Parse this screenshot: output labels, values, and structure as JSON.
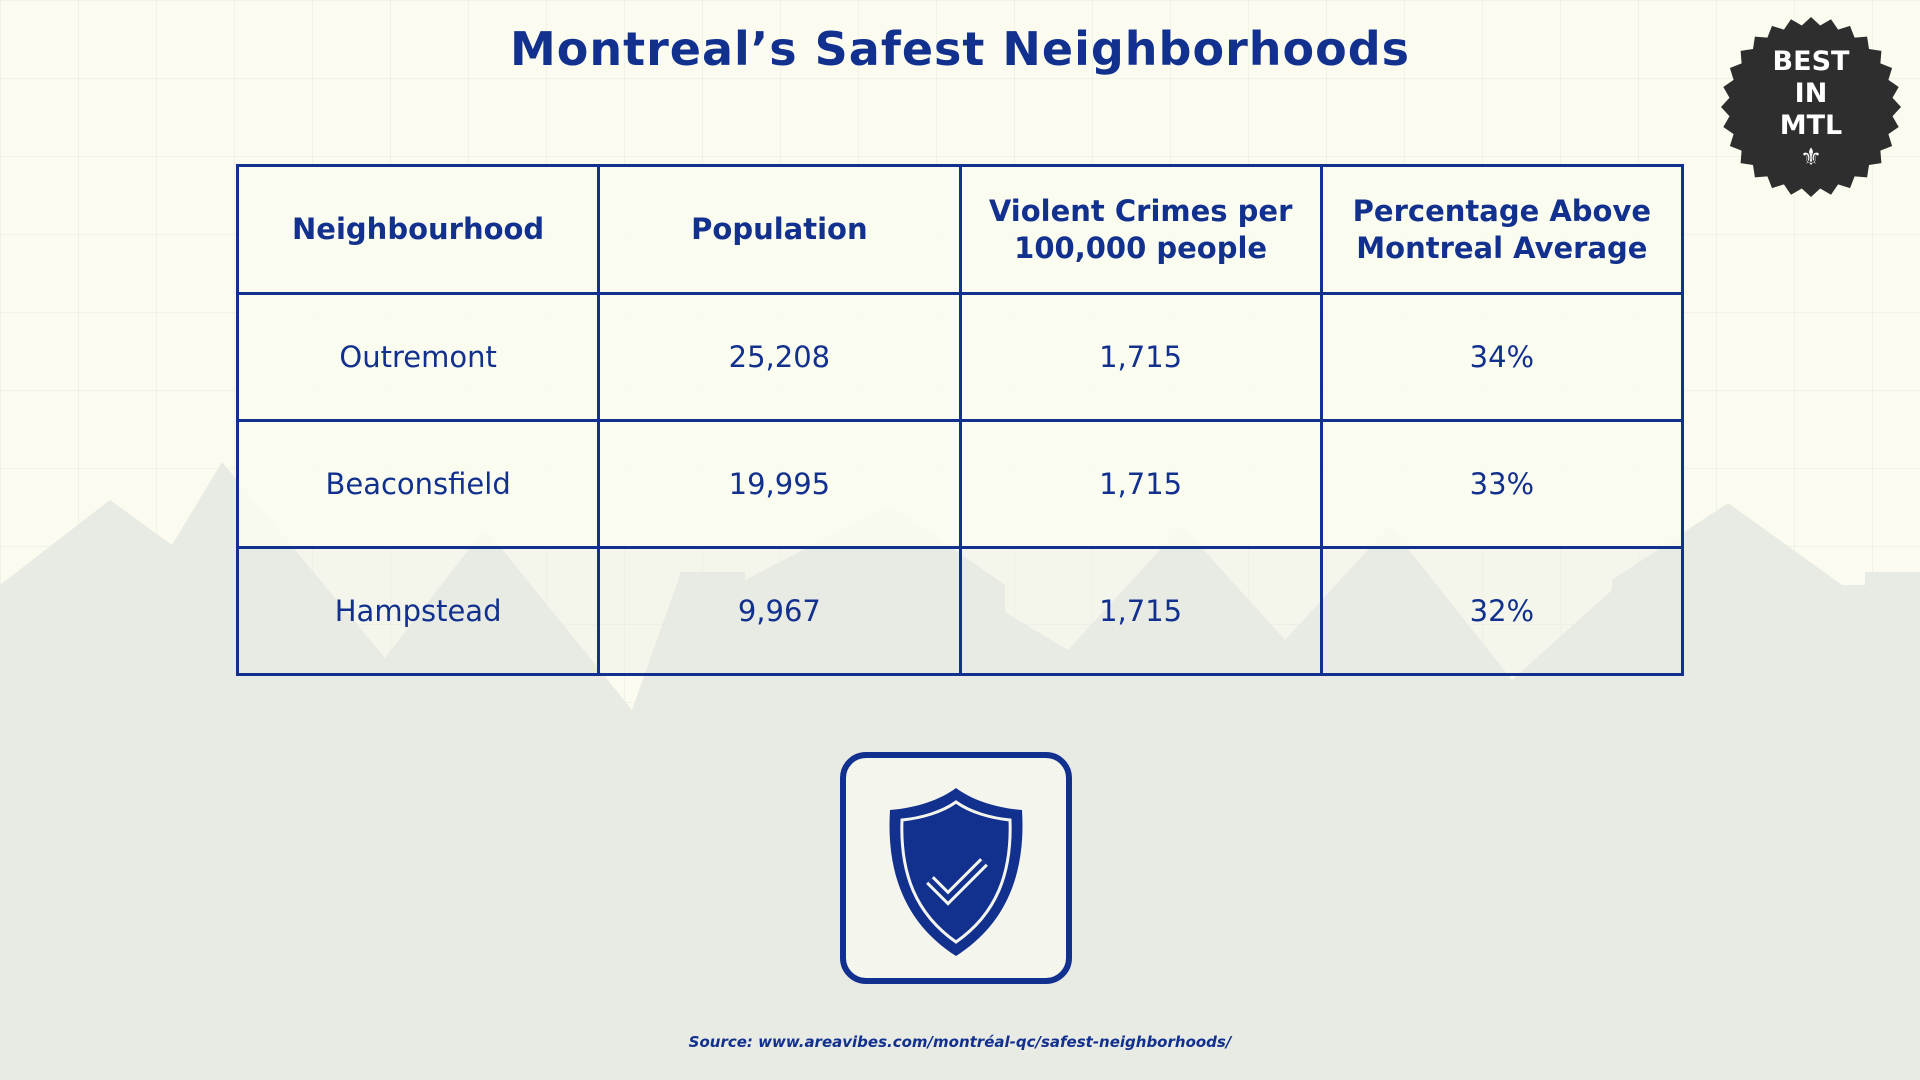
{
  "title": "Montreal’s Safest Neighborhoods",
  "badge": {
    "lines": [
      "BEST",
      "IN",
      "MTL"
    ],
    "icon": "fleur-de-lis-icon"
  },
  "chart_data": {
    "type": "table",
    "columns": [
      "Neighbourhood",
      "Population",
      "Violent Crimes per 100,000 people",
      "Percentage Above Montreal Average"
    ],
    "rows": [
      [
        "Outremont",
        "25,208",
        "1,715",
        "34%"
      ],
      [
        "Beaconsfield",
        "19,995",
        "1,715",
        "33%"
      ],
      [
        "Hampstead",
        "9,967",
        "1,715",
        "32%"
      ]
    ]
  },
  "icon": "shield-check-icon",
  "source": "Source: www.areavibes.com/montréal-qc/safest-neighborhoods/",
  "colors": {
    "primary": "#12308e",
    "background": "#fbfcef",
    "skyline": "#e8eae4",
    "badge": "#2e2e2e"
  }
}
